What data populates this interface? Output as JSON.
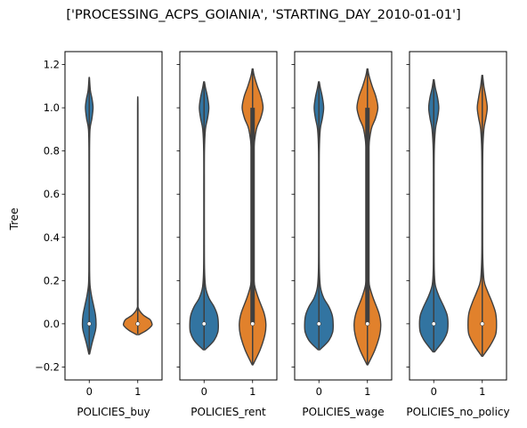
{
  "chart_data": {
    "type": "violin",
    "title": "['PROCESSING_ACPS_GOIANIA', 'STARTING_DAY_2010-01-01']",
    "ylabel": "Tree",
    "ylim": [
      -0.26,
      1.26
    ],
    "yticks": [
      -0.2,
      0.0,
      0.2,
      0.4,
      0.6,
      0.8,
      1.0,
      1.2
    ],
    "ytick_labels": [
      "−0.2",
      "0.0",
      "0.2",
      "0.4",
      "0.6",
      "0.8",
      "1.0",
      "1.2"
    ],
    "colors": {
      "0": "#3274a1",
      "1": "#e1812c"
    },
    "panels": [
      {
        "xlabel": "POLICIES_buy",
        "categories": [
          "0",
          "1"
        ],
        "violins": [
          {
            "category": "0",
            "min": -0.14,
            "max": 1.14,
            "median": 0.0,
            "q1": 0.0,
            "q3": 0.0,
            "density": [
              [
                -0.14,
                0.02
              ],
              [
                -0.09,
                0.15
              ],
              [
                -0.03,
                0.33
              ],
              [
                0.0,
                0.36
              ],
              [
                0.04,
                0.33
              ],
              [
                0.08,
                0.24
              ],
              [
                0.13,
                0.12
              ],
              [
                0.18,
                0.04
              ],
              [
                0.25,
                0.018
              ],
              [
                0.4,
                0.012
              ],
              [
                0.6,
                0.012
              ],
              [
                0.8,
                0.015
              ],
              [
                0.9,
                0.04
              ],
              [
                0.95,
                0.14
              ],
              [
                1.0,
                0.2
              ],
              [
                1.04,
                0.15
              ],
              [
                1.08,
                0.06
              ],
              [
                1.14,
                0.01
              ]
            ]
          },
          {
            "category": "1",
            "min": -0.05,
            "max": 1.05,
            "median": 0.0,
            "q1": 0.0,
            "q3": 0.0,
            "density": [
              [
                -0.05,
                0.08
              ],
              [
                -0.03,
                0.55
              ],
              [
                -0.01,
                0.85
              ],
              [
                0.0,
                0.88
              ],
              [
                0.02,
                0.75
              ],
              [
                0.04,
                0.35
              ],
              [
                0.07,
                0.05
              ],
              [
                0.12,
                0.015
              ],
              [
                0.4,
                0.012
              ],
              [
                0.8,
                0.012
              ],
              [
                1.0,
                0.012
              ],
              [
                1.05,
                0.005
              ]
            ]
          }
        ]
      },
      {
        "xlabel": "POLICIES_rent",
        "categories": [
          "0",
          "1"
        ],
        "violins": [
          {
            "category": "0",
            "min": -0.12,
            "max": 1.12,
            "median": 0.0,
            "q1": 0.0,
            "q3": 0.0,
            "density": [
              [
                -0.12,
                0.05
              ],
              [
                -0.08,
                0.5
              ],
              [
                -0.04,
                0.72
              ],
              [
                0.0,
                0.75
              ],
              [
                0.04,
                0.7
              ],
              [
                0.08,
                0.52
              ],
              [
                0.12,
                0.25
              ],
              [
                0.17,
                0.08
              ],
              [
                0.25,
                0.025
              ],
              [
                0.4,
                0.015
              ],
              [
                0.6,
                0.015
              ],
              [
                0.8,
                0.02
              ],
              [
                0.9,
                0.07
              ],
              [
                0.95,
                0.18
              ],
              [
                1.0,
                0.25
              ],
              [
                1.05,
                0.18
              ],
              [
                1.09,
                0.08
              ],
              [
                1.12,
                0.02
              ]
            ]
          },
          {
            "category": "1",
            "min": -0.19,
            "max": 1.18,
            "median": 0.0,
            "q1": 0.0,
            "q3": 1.0,
            "density": [
              [
                -0.19,
                0.02
              ],
              [
                -0.12,
                0.4
              ],
              [
                -0.05,
                0.65
              ],
              [
                0.0,
                0.7
              ],
              [
                0.05,
                0.6
              ],
              [
                0.12,
                0.3
              ],
              [
                0.18,
                0.1
              ],
              [
                0.25,
                0.04
              ],
              [
                0.4,
                0.03
              ],
              [
                0.6,
                0.035
              ],
              [
                0.8,
                0.06
              ],
              [
                0.9,
                0.2
              ],
              [
                0.95,
                0.42
              ],
              [
                1.0,
                0.55
              ],
              [
                1.05,
                0.45
              ],
              [
                1.1,
                0.25
              ],
              [
                1.15,
                0.08
              ],
              [
                1.18,
                0.02
              ]
            ]
          }
        ]
      },
      {
        "xlabel": "POLICIES_wage",
        "categories": [
          "0",
          "1"
        ],
        "violins": [
          {
            "category": "0",
            "min": -0.12,
            "max": 1.12,
            "median": 0.0,
            "q1": 0.0,
            "q3": 0.0,
            "density": [
              [
                -0.12,
                0.05
              ],
              [
                -0.08,
                0.5
              ],
              [
                -0.04,
                0.72
              ],
              [
                0.0,
                0.75
              ],
              [
                0.04,
                0.7
              ],
              [
                0.08,
                0.52
              ],
              [
                0.12,
                0.25
              ],
              [
                0.17,
                0.08
              ],
              [
                0.25,
                0.025
              ],
              [
                0.4,
                0.015
              ],
              [
                0.6,
                0.015
              ],
              [
                0.8,
                0.02
              ],
              [
                0.9,
                0.07
              ],
              [
                0.95,
                0.18
              ],
              [
                1.0,
                0.25
              ],
              [
                1.05,
                0.18
              ],
              [
                1.09,
                0.08
              ],
              [
                1.12,
                0.02
              ]
            ]
          },
          {
            "category": "1",
            "min": -0.19,
            "max": 1.18,
            "median": 0.0,
            "q1": 0.0,
            "q3": 1.0,
            "density": [
              [
                -0.19,
                0.02
              ],
              [
                -0.12,
                0.4
              ],
              [
                -0.05,
                0.65
              ],
              [
                0.0,
                0.7
              ],
              [
                0.05,
                0.6
              ],
              [
                0.12,
                0.3
              ],
              [
                0.18,
                0.1
              ],
              [
                0.25,
                0.04
              ],
              [
                0.4,
                0.03
              ],
              [
                0.6,
                0.035
              ],
              [
                0.8,
                0.06
              ],
              [
                0.9,
                0.2
              ],
              [
                0.95,
                0.42
              ],
              [
                1.0,
                0.55
              ],
              [
                1.05,
                0.45
              ],
              [
                1.1,
                0.25
              ],
              [
                1.15,
                0.08
              ],
              [
                1.18,
                0.02
              ]
            ]
          }
        ]
      },
      {
        "xlabel": "POLICIES_no_policy",
        "categories": [
          "0",
          "1"
        ],
        "violins": [
          {
            "category": "0",
            "min": -0.13,
            "max": 1.13,
            "median": 0.0,
            "q1": 0.0,
            "q3": 0.0,
            "density": [
              [
                -0.13,
                0.05
              ],
              [
                -0.08,
                0.55
              ],
              [
                -0.04,
                0.8
              ],
              [
                0.0,
                0.85
              ],
              [
                0.04,
                0.8
              ],
              [
                0.08,
                0.6
              ],
              [
                0.13,
                0.3
              ],
              [
                0.18,
                0.09
              ],
              [
                0.25,
                0.03
              ],
              [
                0.4,
                0.02
              ],
              [
                0.6,
                0.02
              ],
              [
                0.8,
                0.03
              ],
              [
                0.9,
                0.1
              ],
              [
                0.95,
                0.22
              ],
              [
                1.0,
                0.3
              ],
              [
                1.05,
                0.22
              ],
              [
                1.09,
                0.1
              ],
              [
                1.13,
                0.02
              ]
            ]
          },
          {
            "category": "1",
            "min": -0.15,
            "max": 1.15,
            "median": 0.0,
            "q1": 0.0,
            "q3": 0.0,
            "density": [
              [
                -0.15,
                0.03
              ],
              [
                -0.1,
                0.45
              ],
              [
                -0.05,
                0.75
              ],
              [
                0.0,
                0.8
              ],
              [
                0.05,
                0.75
              ],
              [
                0.1,
                0.55
              ],
              [
                0.15,
                0.3
              ],
              [
                0.2,
                0.1
              ],
              [
                0.3,
                0.03
              ],
              [
                0.45,
                0.02
              ],
              [
                0.6,
                0.02
              ],
              [
                0.8,
                0.03
              ],
              [
                0.9,
                0.09
              ],
              [
                0.95,
                0.2
              ],
              [
                1.0,
                0.28
              ],
              [
                1.05,
                0.2
              ],
              [
                1.1,
                0.09
              ],
              [
                1.15,
                0.02
              ]
            ]
          }
        ]
      }
    ]
  }
}
